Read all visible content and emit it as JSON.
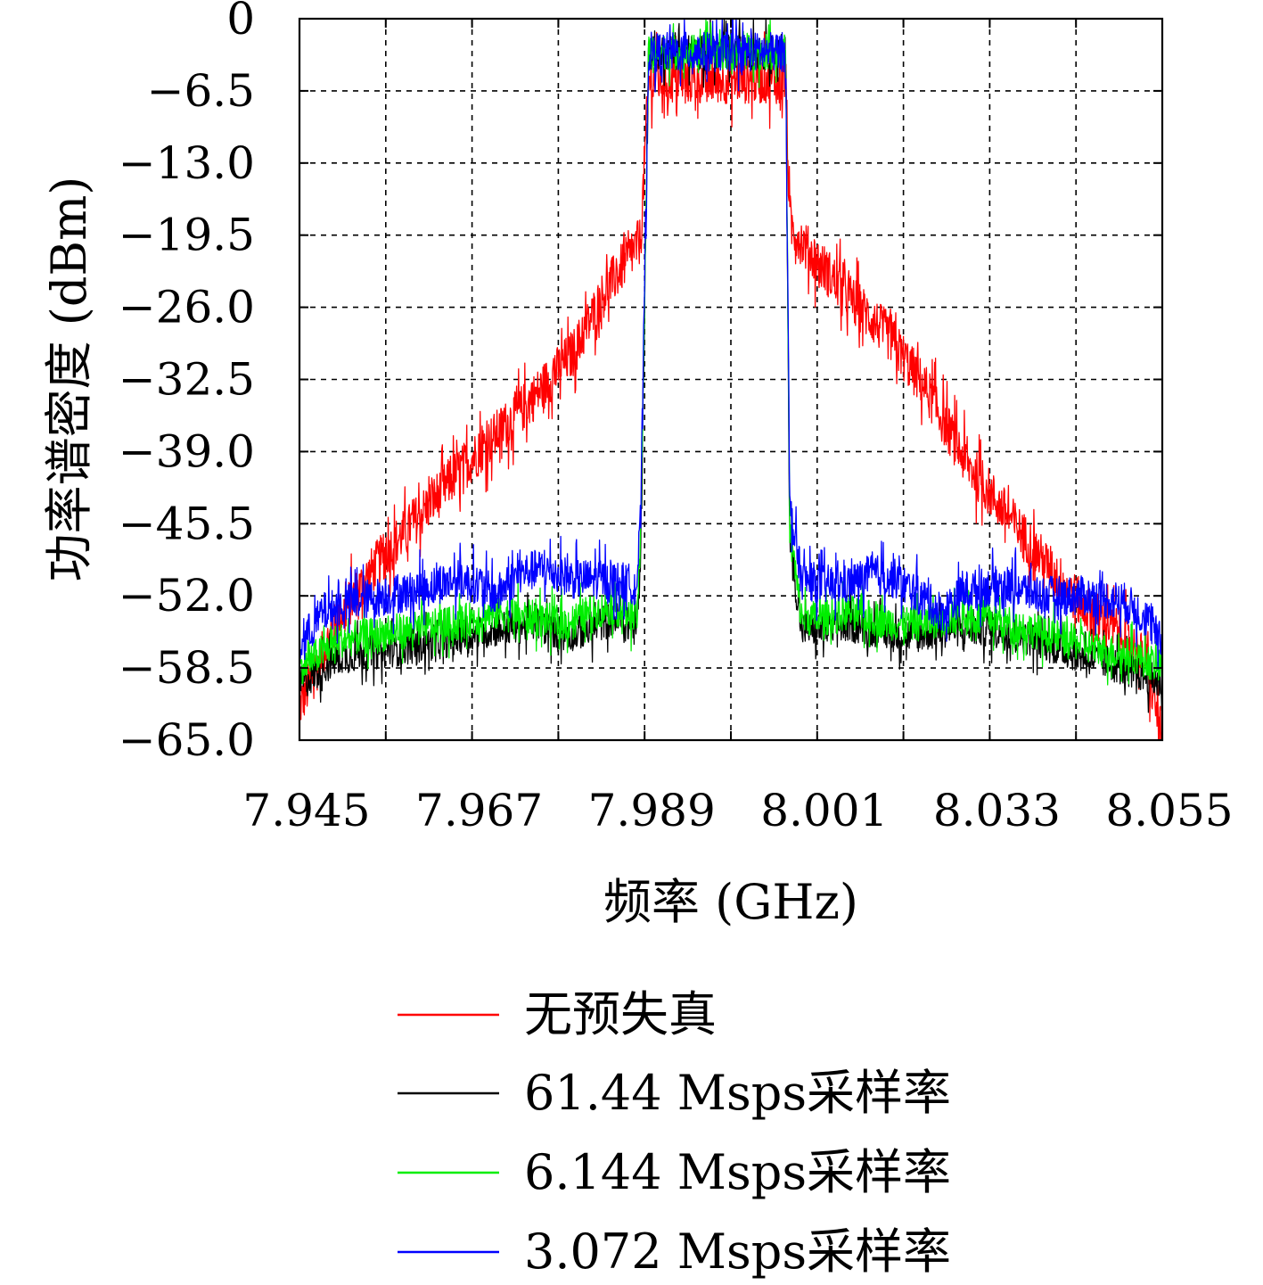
{
  "chart_data": {
    "type": "line",
    "title": "",
    "xlabel": "频率 (GHz)",
    "ylabel": "功率谱密度 (dBm)",
    "x_tick_labels": [
      "7.945",
      "7.967",
      "7.989",
      "8.001",
      "8.033",
      "8.055"
    ],
    "y_tick_labels": [
      "0",
      "-6.5",
      "-13.0",
      "-19.5",
      "-26.0",
      "-32.5",
      "-39.0",
      "-45.5",
      "-52.0",
      "-58.5",
      "-65.0"
    ],
    "xlim": [
      7.945,
      8.055
    ],
    "ylim": [
      -65.0,
      0
    ],
    "grid": true,
    "legend_position": "bottom-center",
    "series": [
      {
        "name": "无预失真",
        "color": "#ff0000",
        "x": [
          7.945,
          7.95,
          7.955,
          7.96,
          7.965,
          7.97,
          7.975,
          7.98,
          7.984,
          7.9885,
          7.9895,
          7.992,
          7.996,
          8.0,
          8.004,
          8.007,
          8.0075,
          8.01,
          8.015,
          8.02,
          8.025,
          8.03,
          8.035,
          8.04,
          8.045,
          8.05,
          8.053,
          8.055
        ],
        "y": [
          -62.0,
          -54.0,
          -49.0,
          -45.0,
          -41.0,
          -37.5,
          -34.0,
          -30.0,
          -24.5,
          -20.0,
          -5.5,
          -5.5,
          -5.5,
          -5.5,
          -5.5,
          -5.5,
          -18.5,
          -21.0,
          -25.0,
          -28.5,
          -33.5,
          -40.0,
          -44.5,
          -49.0,
          -53.0,
          -55.5,
          -58.0,
          -65.0
        ]
      },
      {
        "name": "61.44 Msps采样率",
        "color": "#000000",
        "x": [
          7.945,
          7.95,
          7.955,
          7.96,
          7.965,
          7.97,
          7.975,
          7.979,
          7.982,
          7.985,
          7.988,
          7.9885,
          7.9895,
          7.992,
          7.996,
          8.0,
          8.004,
          8.007,
          8.0075,
          8.009,
          8.012,
          8.015,
          8.018,
          8.021,
          8.024,
          8.028,
          8.033,
          8.038,
          8.043,
          8.048,
          8.052,
          8.055
        ],
        "y": [
          -60.0,
          -57.5,
          -57.0,
          -56.5,
          -55.8,
          -55.0,
          -54.5,
          -55.5,
          -55.0,
          -54.0,
          -55.0,
          -48.0,
          -3.0,
          -3.0,
          -3.0,
          -3.0,
          -3.0,
          -3.0,
          -47.0,
          -55.0,
          -55.0,
          -54.5,
          -55.0,
          -55.5,
          -55.5,
          -55.0,
          -55.0,
          -55.8,
          -57.0,
          -58.0,
          -59.0,
          -60.0
        ]
      },
      {
        "name": "6.144 Msps采样率",
        "color": "#00ee00",
        "x": [
          7.945,
          7.95,
          7.955,
          7.96,
          7.965,
          7.97,
          7.975,
          7.979,
          7.982,
          7.985,
          7.988,
          7.9885,
          7.9895,
          7.992,
          7.996,
          8.0,
          8.004,
          8.007,
          8.0075,
          8.009,
          8.012,
          8.015,
          8.018,
          8.021,
          8.024,
          8.028,
          8.033,
          8.038,
          8.043,
          8.048,
          8.052,
          8.055
        ],
        "y": [
          -58.5,
          -56.0,
          -55.5,
          -55.0,
          -54.5,
          -53.5,
          -54.0,
          -54.5,
          -53.5,
          -53.0,
          -54.0,
          -47.0,
          -3.0,
          -3.0,
          -3.0,
          -3.0,
          -3.0,
          -3.0,
          -46.0,
          -54.0,
          -54.0,
          -53.5,
          -54.0,
          -54.5,
          -54.5,
          -54.0,
          -54.0,
          -55.0,
          -56.0,
          -57.0,
          -57.5,
          -58.5
        ]
      },
      {
        "name": "3.072 Msps采样率",
        "color": "#0000ff",
        "x": [
          7.945,
          7.948,
          7.952,
          7.956,
          7.96,
          7.965,
          7.968,
          7.97,
          7.973,
          7.976,
          7.98,
          7.984,
          7.988,
          7.9885,
          7.9895,
          7.992,
          7.996,
          8.0,
          8.004,
          8.007,
          8.0075,
          8.009,
          8.012,
          8.015,
          8.018,
          8.021,
          8.024,
          8.027,
          8.03,
          8.035,
          8.04,
          8.045,
          8.05,
          8.053,
          8.055
        ],
        "y": [
          -56.5,
          -53.5,
          -52.5,
          -52.0,
          -51.5,
          -50.5,
          -51.0,
          -52.0,
          -50.0,
          -49.5,
          -50.5,
          -50.5,
          -51.0,
          -45.0,
          -3.0,
          -3.0,
          -3.0,
          -3.0,
          -3.0,
          -3.0,
          -44.0,
          -50.5,
          -51.0,
          -51.0,
          -50.0,
          -50.5,
          -52.0,
          -53.5,
          -51.5,
          -51.0,
          -52.0,
          -52.0,
          -52.5,
          -54.0,
          -56.5
        ]
      }
    ]
  }
}
